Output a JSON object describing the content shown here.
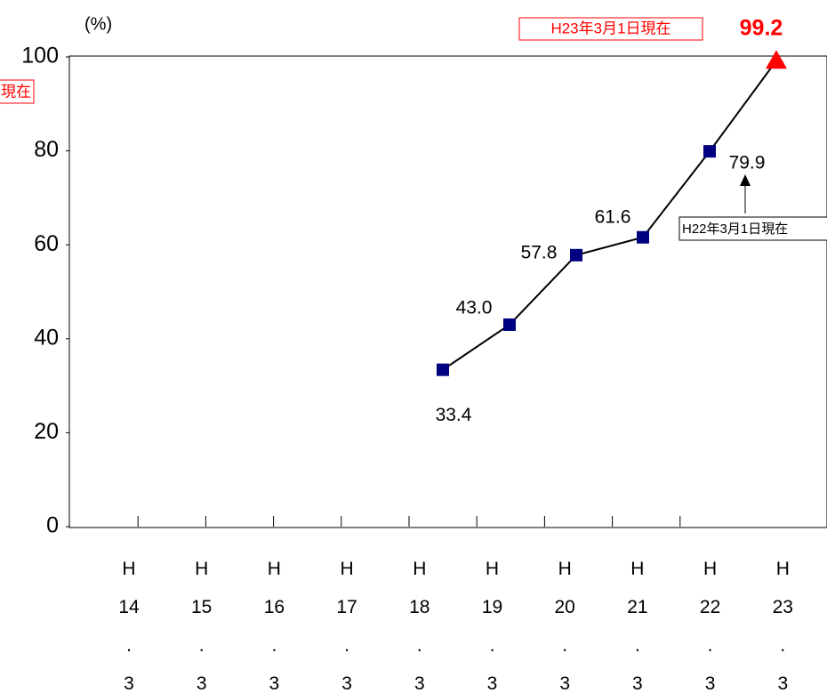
{
  "chart_data": {
    "type": "line",
    "unit_label": "(%)",
    "categories": [
      "H 14 . 3",
      "H 15 . 3",
      "H 16 . 3",
      "H 17 . 3",
      "H 18 . 3",
      "H 19 . 3",
      "H 20 . 3",
      "H 21 . 3",
      "H 22 . 3",
      "H 23 . 3"
    ],
    "values": [
      null,
      null,
      null,
      null,
      33.4,
      43.0,
      57.8,
      61.6,
      79.9,
      99.2
    ],
    "value_labels": [
      null,
      null,
      null,
      null,
      "33.4",
      "43.0",
      "57.8",
      "61.6",
      "79.9",
      "99.2"
    ],
    "color": "#000080",
    "line_color": "#000000",
    "highlight_color": "#ff0000",
    "ylim": [
      0,
      100
    ],
    "yticks": [
      0,
      20,
      40,
      60,
      80,
      100
    ],
    "annotations": [
      "H23年3月1日現在",
      "H22年3月1日現在",
      "現在"
    ]
  }
}
